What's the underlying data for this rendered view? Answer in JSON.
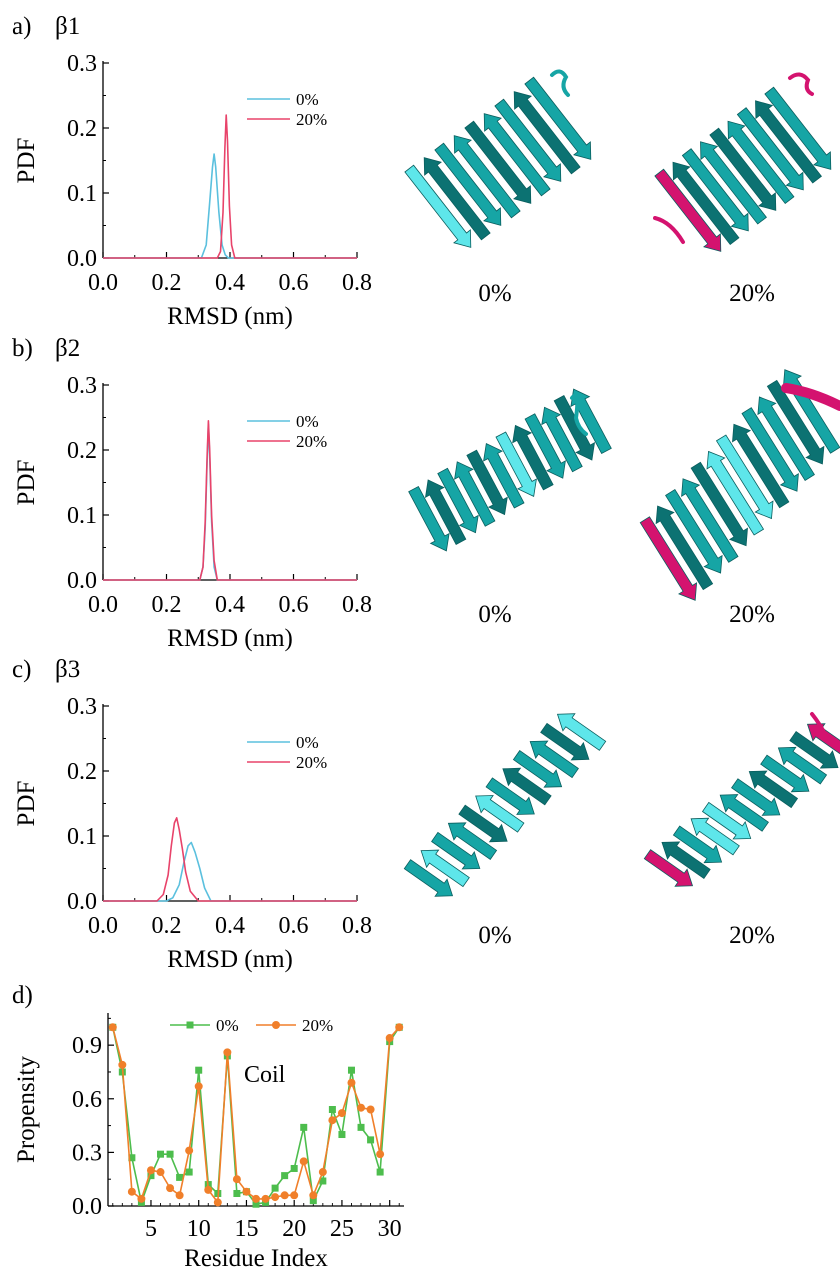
{
  "panels": [
    {
      "letter": "a)",
      "title": "β1",
      "structure_labels": [
        "0%",
        "20%"
      ]
    },
    {
      "letter": "b)",
      "title": "β2",
      "structure_labels": [
        "0%",
        "20%"
      ]
    },
    {
      "letter": "c)",
      "title": "β3",
      "structure_labels": [
        "0%",
        "20%"
      ]
    },
    {
      "letter": "d)",
      "title": ""
    }
  ],
  "colors": {
    "pdf_0": "#5bc0de",
    "pdf_20": "#e8436a",
    "prop_0": "#4dbd4d",
    "prop_20": "#f07f2a",
    "ribbon_teal": "#16a5a5",
    "ribbon_teal_dark": "#0c7272",
    "ribbon_cyan_light": "#5ee6ea",
    "ribbon_magenta": "#d4136f"
  },
  "chart_data": [
    {
      "type": "line",
      "panel": "a",
      "xlabel": "RMSD (nm)",
      "ylabel": "PDF",
      "xlim": [
        0.0,
        0.8
      ],
      "ylim": [
        0.0,
        0.3
      ],
      "xticks": [
        "0.0",
        "0.2",
        "0.4",
        "0.6",
        "0.8"
      ],
      "yticks": [
        "0.0",
        "0.1",
        "0.2",
        "0.3"
      ],
      "legend_position": "top-right",
      "series": [
        {
          "name": "0%",
          "color": "#5bc0de",
          "x": [
            0.0,
            0.31,
            0.325,
            0.335,
            0.345,
            0.35,
            0.355,
            0.365,
            0.375,
            0.385,
            0.395,
            0.8
          ],
          "y": [
            0.0,
            0.0,
            0.02,
            0.08,
            0.14,
            0.16,
            0.14,
            0.07,
            0.02,
            0.005,
            0.0,
            0.0
          ]
        },
        {
          "name": "20%",
          "color": "#e8436a",
          "x": [
            0.0,
            0.36,
            0.37,
            0.378,
            0.384,
            0.388,
            0.392,
            0.398,
            0.405,
            0.415,
            0.8
          ],
          "y": [
            0.0,
            0.0,
            0.01,
            0.07,
            0.17,
            0.22,
            0.18,
            0.08,
            0.02,
            0.0,
            0.0
          ]
        }
      ]
    },
    {
      "type": "line",
      "panel": "b",
      "xlabel": "RMSD (nm)",
      "ylabel": "PDF",
      "xlim": [
        0.0,
        0.8
      ],
      "ylim": [
        0.0,
        0.3
      ],
      "xticks": [
        "0.0",
        "0.2",
        "0.4",
        "0.6",
        "0.8"
      ],
      "yticks": [
        "0.0",
        "0.1",
        "0.2",
        "0.3"
      ],
      "legend_position": "top-right",
      "series": [
        {
          "name": "0%",
          "color": "#5bc0de",
          "x": [
            0.0,
            0.305,
            0.315,
            0.322,
            0.328,
            0.332,
            0.336,
            0.342,
            0.35,
            0.36,
            0.8
          ],
          "y": [
            0.0,
            0.0,
            0.02,
            0.08,
            0.18,
            0.24,
            0.19,
            0.09,
            0.02,
            0.0,
            0.0
          ]
        },
        {
          "name": "20%",
          "color": "#e8436a",
          "x": [
            0.0,
            0.305,
            0.315,
            0.322,
            0.328,
            0.332,
            0.336,
            0.342,
            0.35,
            0.36,
            0.8
          ],
          "y": [
            0.0,
            0.0,
            0.02,
            0.09,
            0.19,
            0.245,
            0.2,
            0.1,
            0.03,
            0.0,
            0.0
          ]
        }
      ]
    },
    {
      "type": "line",
      "panel": "c",
      "xlabel": "RMSD (nm)",
      "ylabel": "PDF",
      "xlim": [
        0.0,
        0.8
      ],
      "ylim": [
        0.0,
        0.3
      ],
      "xticks": [
        "0.0",
        "0.2",
        "0.4",
        "0.6",
        "0.8"
      ],
      "yticks": [
        "0.0",
        "0.1",
        "0.2",
        "0.3"
      ],
      "legend_position": "top-right",
      "series": [
        {
          "name": "0%",
          "color": "#5bc0de",
          "x": [
            0.0,
            0.2,
            0.22,
            0.24,
            0.255,
            0.268,
            0.278,
            0.29,
            0.305,
            0.32,
            0.34,
            0.8
          ],
          "y": [
            0.0,
            0.0,
            0.005,
            0.025,
            0.06,
            0.085,
            0.09,
            0.075,
            0.05,
            0.02,
            0.0,
            0.0
          ]
        },
        {
          "name": "20%",
          "color": "#e8436a",
          "x": [
            0.0,
            0.17,
            0.19,
            0.205,
            0.215,
            0.225,
            0.232,
            0.24,
            0.25,
            0.26,
            0.275,
            0.3,
            0.8
          ],
          "y": [
            0.0,
            0.0,
            0.01,
            0.04,
            0.085,
            0.12,
            0.128,
            0.11,
            0.08,
            0.045,
            0.015,
            0.0,
            0.0
          ]
        }
      ]
    },
    {
      "type": "line",
      "panel": "d",
      "xlabel": "Residue Index",
      "ylabel": "Propensity",
      "xlim": [
        0.5,
        31.5
      ],
      "ylim": [
        0.0,
        1.08
      ],
      "xticks": [
        "5",
        "10",
        "15",
        "20",
        "25",
        "30"
      ],
      "yticks": [
        "0.0",
        "0.3",
        "0.6",
        "0.9"
      ],
      "legend_position": "top",
      "annotation": "Coil",
      "series": [
        {
          "name": "0%",
          "color": "#4dbd4d",
          "marker": "square",
          "x": [
            1,
            2,
            3,
            4,
            5,
            6,
            7,
            8,
            9,
            10,
            11,
            12,
            13,
            14,
            15,
            16,
            17,
            18,
            19,
            20,
            21,
            22,
            23,
            24,
            25,
            26,
            27,
            28,
            29,
            30,
            31
          ],
          "y": [
            1.0,
            0.75,
            0.27,
            0.02,
            0.17,
            0.29,
            0.29,
            0.16,
            0.19,
            0.76,
            0.12,
            0.07,
            0.84,
            0.07,
            0.08,
            0.01,
            0.02,
            0.1,
            0.17,
            0.21,
            0.44,
            0.03,
            0.14,
            0.54,
            0.4,
            0.76,
            0.44,
            0.37,
            0.19,
            0.92,
            1.0
          ]
        },
        {
          "name": "20%",
          "color": "#f07f2a",
          "marker": "circle",
          "x": [
            1,
            2,
            3,
            4,
            5,
            6,
            7,
            8,
            9,
            10,
            11,
            12,
            13,
            14,
            15,
            16,
            17,
            18,
            19,
            20,
            21,
            22,
            23,
            24,
            25,
            26,
            27,
            28,
            29,
            30,
            31
          ],
          "y": [
            1.0,
            0.79,
            0.08,
            0.04,
            0.2,
            0.19,
            0.1,
            0.06,
            0.31,
            0.67,
            0.09,
            0.02,
            0.86,
            0.15,
            0.08,
            0.04,
            0.04,
            0.05,
            0.06,
            0.06,
            0.25,
            0.06,
            0.19,
            0.48,
            0.52,
            0.69,
            0.55,
            0.54,
            0.29,
            0.94,
            1.0
          ]
        }
      ]
    }
  ]
}
